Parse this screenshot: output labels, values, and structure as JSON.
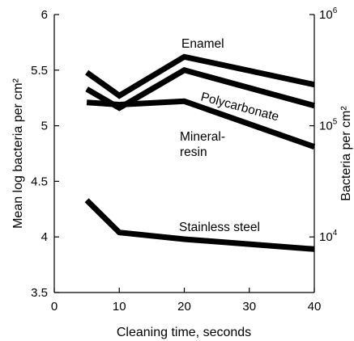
{
  "chart_data": {
    "type": "line",
    "xlabel": "Cleaning time, seconds",
    "ylabel": "Mean log bacteria per cm²",
    "y2label": "Bacteria per cm²",
    "xlim": [
      0,
      40
    ],
    "ylim": [
      3.5,
      6
    ],
    "x_ticks": [
      0,
      10,
      20,
      30,
      40
    ],
    "y_ticks": [
      3.5,
      4,
      4.5,
      5,
      5.5,
      6
    ],
    "y2_ticks": [
      {
        "label": "10",
        "exp": "4",
        "log": 4
      },
      {
        "label": "10",
        "exp": "5",
        "log": 5
      },
      {
        "label": "10",
        "exp": "6",
        "log": 6
      }
    ],
    "grid": false,
    "legend": "none",
    "line_color": "#000000",
    "series": [
      {
        "name": "Enamel",
        "x": [
          5,
          10,
          20,
          40
        ],
        "y": [
          5.48,
          5.27,
          5.62,
          5.37
        ]
      },
      {
        "name": "Polycarbonate",
        "x": [
          5,
          10,
          20,
          40
        ],
        "y": [
          5.33,
          5.16,
          5.5,
          5.18
        ]
      },
      {
        "name": "Mineral-resin",
        "x": [
          5,
          10,
          20,
          40
        ],
        "y": [
          5.21,
          5.19,
          5.22,
          4.81
        ]
      },
      {
        "name": "Stainless steel",
        "x": [
          5,
          10,
          20,
          40
        ],
        "y": [
          4.33,
          4.04,
          3.98,
          3.89
        ]
      }
    ],
    "labels": {
      "enamel": "Enamel",
      "polycarbonate": "Polycarbonate",
      "mineral_line1": "Mineral-",
      "mineral_line2": "resin",
      "stainless": "Stainless steel"
    }
  }
}
